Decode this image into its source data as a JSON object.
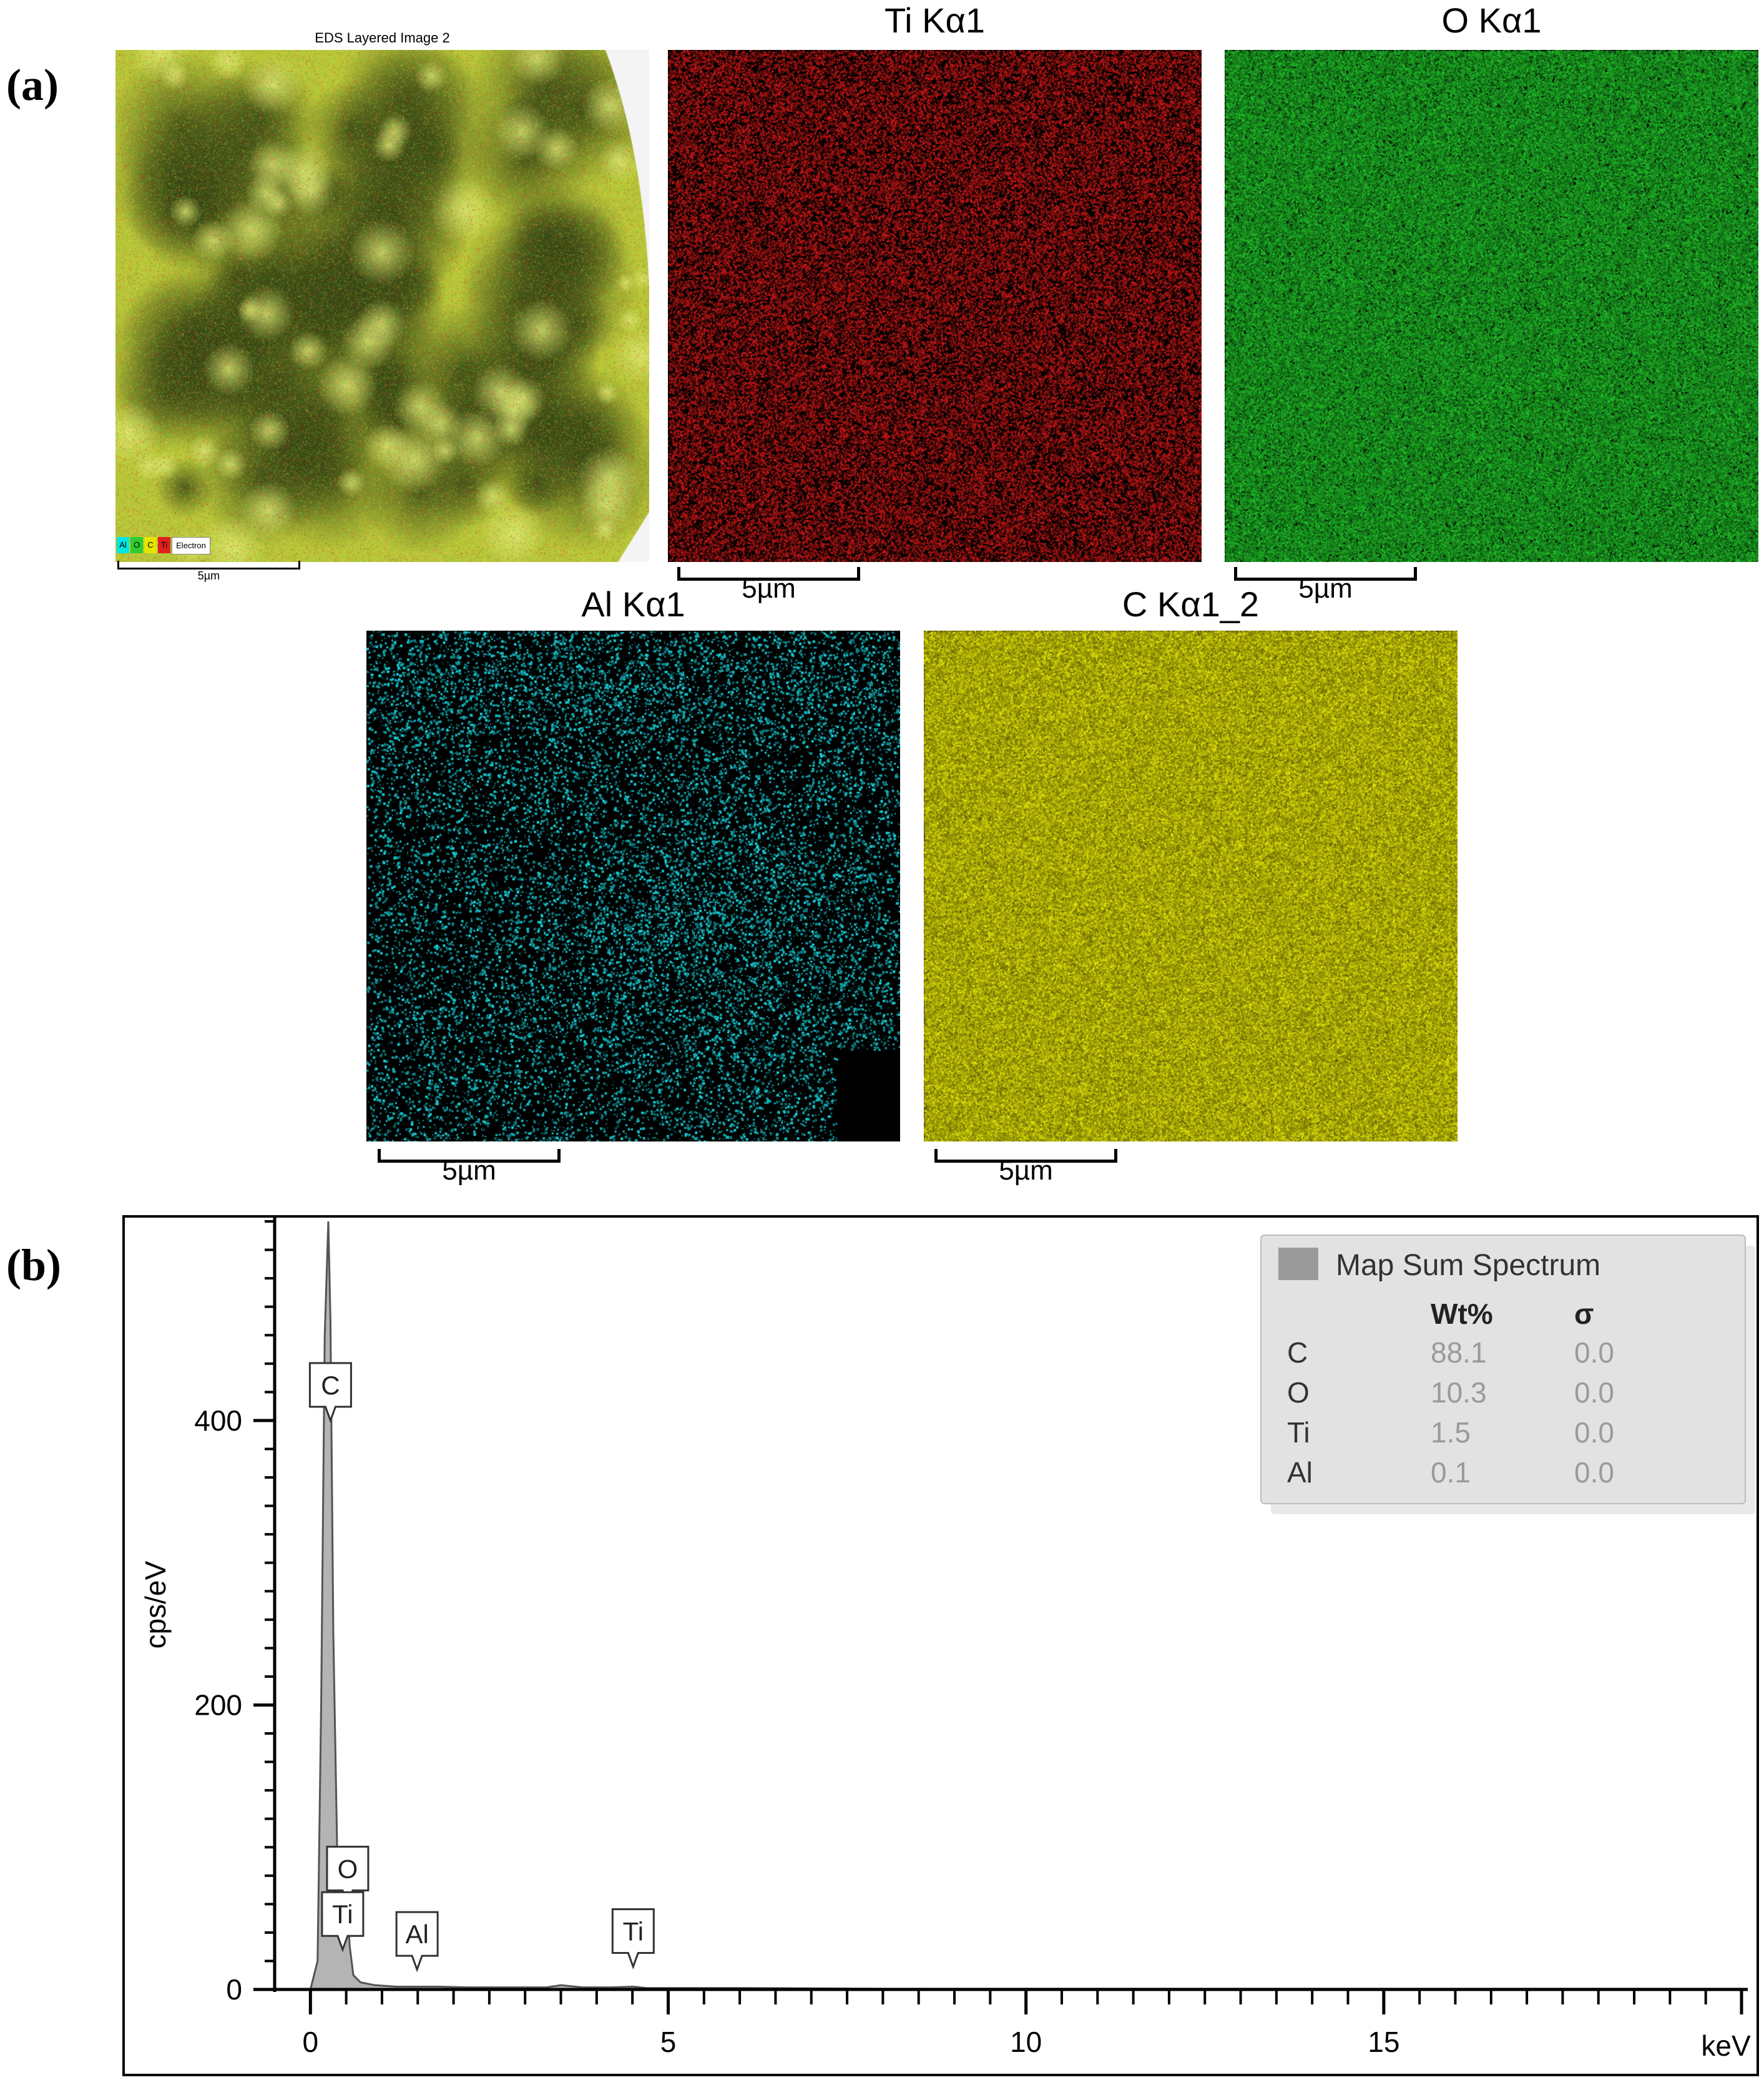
{
  "panels": {
    "a_label": "(a)",
    "b_label": "(b)"
  },
  "maps": {
    "layered": {
      "title": "EDS Layered Image 2",
      "scale": "5µm",
      "legend": [
        "Al",
        "O",
        "C",
        "Ti",
        "Electron"
      ],
      "legend_colors": [
        "#00e5e5",
        "#2ecc2e",
        "#e5e500",
        "#e02020",
        "#ffffff"
      ]
    },
    "ti": {
      "title": "Ti Kα1",
      "scale": "5µm",
      "color": "#d01818"
    },
    "o": {
      "title": "O Kα1",
      "scale": "5µm",
      "color": "#22c22a"
    },
    "al": {
      "title": "Al Kα1",
      "scale": "5µm",
      "color": "#19d8e0"
    },
    "c": {
      "title": "C Kα1_2",
      "scale": "5µm",
      "color": "#e6e60a"
    }
  },
  "chart_data": {
    "type": "area",
    "title": "",
    "xlabel": "keV",
    "ylabel": "cps/eV",
    "xlim": [
      -0.5,
      20
    ],
    "ylim": [
      0,
      540
    ],
    "xticks": [
      0,
      5,
      10,
      15
    ],
    "yticks": [
      0,
      200,
      400
    ],
    "grid": false,
    "fill_color": "#b4b4b4",
    "series": [
      {
        "name": "Map Sum Spectrum",
        "x": [
          0,
          0.1,
          0.15,
          0.2,
          0.25,
          0.28,
          0.32,
          0.38,
          0.45,
          0.5,
          0.55,
          0.6,
          0.7,
          0.9,
          1.2,
          1.49,
          1.8,
          2.2,
          2.8,
          3.3,
          3.5,
          3.8,
          4.2,
          4.51,
          4.7,
          5.0,
          6,
          8,
          10,
          12,
          15,
          18,
          20
        ],
        "y": [
          0,
          20,
          200,
          460,
          540,
          470,
          250,
          80,
          40,
          70,
          30,
          10,
          5,
          3,
          2,
          2,
          2,
          1.5,
          1.5,
          1.5,
          3,
          1.5,
          1.5,
          2,
          1,
          1,
          1,
          0.5,
          0.5,
          0.5,
          0.5,
          0.5,
          0.5
        ]
      }
    ],
    "peak_labels": [
      {
        "label": "C",
        "x": 0.28,
        "y": 400
      },
      {
        "label": "O",
        "x": 0.52,
        "y": 60
      },
      {
        "label": "Ti",
        "x": 0.45,
        "y": 28
      },
      {
        "label": "Al",
        "x": 1.49,
        "y": 14
      },
      {
        "label": "Ti",
        "x": 4.51,
        "y": 16
      }
    ],
    "legend": {
      "title": "Map Sum Spectrum",
      "columns": [
        "Wt%",
        "σ"
      ],
      "rows": [
        {
          "element": "C",
          "wt": "88.1",
          "sigma": "0.0"
        },
        {
          "element": "O",
          "wt": "10.3",
          "sigma": "0.0"
        },
        {
          "element": "Ti",
          "wt": "1.5",
          "sigma": "0.0"
        },
        {
          "element": "Al",
          "wt": "0.1",
          "sigma": "0.0"
        }
      ],
      "position": "top-right"
    }
  }
}
